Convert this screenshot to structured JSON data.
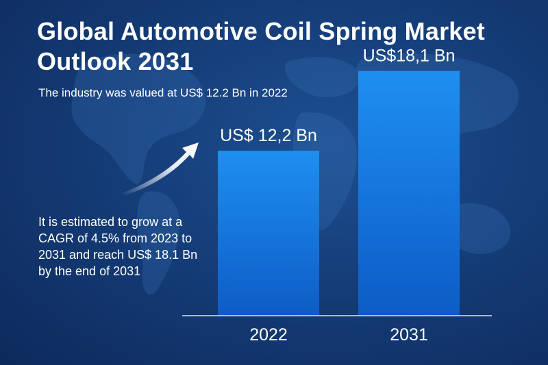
{
  "title": "Global Automotive Coil Spring Market Outlook 2031",
  "lead_text": "The industry was valued at US$ 12.2 Bn in 2022",
  "note_text": "It is estimated to grow at a CAGR of 4.5% from 2023 to 2031 and reach US$ 18.1 Bn by the end of 2031",
  "colors": {
    "background": "#153d78",
    "bar_top": "#1e8ff0",
    "bar_bottom": "#0d5cc6",
    "text": "#ffffff"
  },
  "chart_data": {
    "type": "bar",
    "title": "Global Automotive Coil Spring Market Outlook 2031",
    "categories": [
      "2022",
      "2031"
    ],
    "values": [
      12.2,
      18.1
    ],
    "value_labels": [
      "US$ 12,2 Bn",
      "US$18,1 Bn"
    ],
    "ylim": [
      0,
      19.2
    ],
    "grid": false,
    "legend": "none"
  }
}
